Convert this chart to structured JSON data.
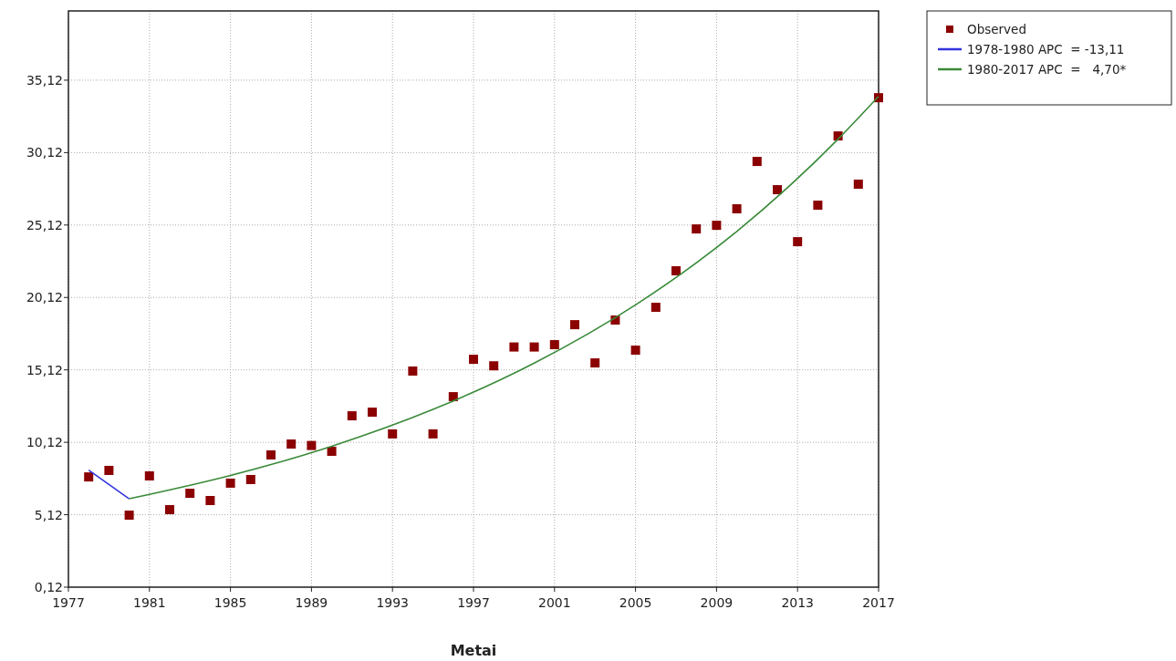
{
  "chart_data": {
    "type": "scatter",
    "xlabel": "Metai",
    "x": [
      1978,
      1979,
      1980,
      1981,
      1982,
      1983,
      1984,
      1985,
      1986,
      1987,
      1988,
      1989,
      1990,
      1991,
      1992,
      1993,
      1994,
      1995,
      1996,
      1997,
      1998,
      1999,
      2000,
      2001,
      2002,
      2003,
      2004,
      2005,
      2006,
      2007,
      2008,
      2009,
      2010,
      2011,
      2012,
      2013,
      2014,
      2015,
      2016,
      2017
    ],
    "series": [
      {
        "name": "Observed",
        "color": "#8b0000",
        "marker": "square",
        "values": [
          7.73,
          8.18,
          5.09,
          7.8,
          5.47,
          6.6,
          6.1,
          7.3,
          7.55,
          9.25,
          10.0,
          9.9,
          9.5,
          11.95,
          12.2,
          10.7,
          15.04,
          10.7,
          13.27,
          15.85,
          15.4,
          16.7,
          16.7,
          16.86,
          18.24,
          15.6,
          18.56,
          16.48,
          19.44,
          21.96,
          24.85,
          25.1,
          26.24,
          29.51,
          27.56,
          23.97,
          26.49,
          31.27,
          27.94,
          33.91
        ]
      },
      {
        "name": "1978-1980 APC  = -13,11",
        "type": "line",
        "color": "#3333dd",
        "marker": "none",
        "x": [
          1978,
          1980
        ],
        "values": [
          8.2,
          6.22
        ]
      },
      {
        "name": "1980-2017 APC  =   4,70*",
        "type": "line",
        "color": "#3a8a3a",
        "marker": "none",
        "x": [
          1980,
          1985,
          1990,
          1995,
          2000,
          2005,
          2010,
          2015,
          2017
        ],
        "values": [
          6.22,
          7.83,
          9.85,
          12.39,
          15.59,
          19.61,
          24.68,
          31.05,
          34.0
        ]
      }
    ],
    "xlim": [
      1977,
      2017
    ],
    "xticks": [
      1977,
      1981,
      1985,
      1989,
      1993,
      1997,
      2001,
      2005,
      2009,
      2013,
      2017
    ],
    "ylim": [
      0.12,
      39.9
    ],
    "yticks": [
      {
        "value": 0.12,
        "label": "0,12"
      },
      {
        "value": 5.12,
        "label": "5,12"
      },
      {
        "value": 10.12,
        "label": "10,12"
      },
      {
        "value": 15.12,
        "label": "15,12"
      },
      {
        "value": 20.12,
        "label": "20,12"
      },
      {
        "value": 25.12,
        "label": "25,12"
      },
      {
        "value": 30.12,
        "label": "30,12"
      },
      {
        "value": 35.12,
        "label": "35,12"
      }
    ],
    "grid": true,
    "legend": "top right"
  }
}
